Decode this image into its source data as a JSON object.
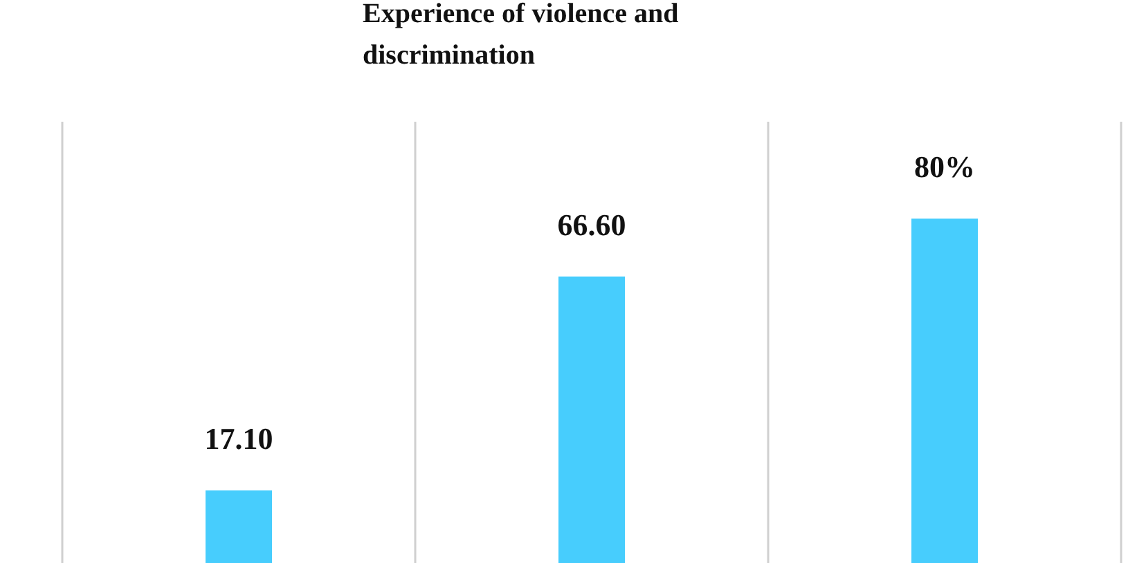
{
  "chart_data": {
    "type": "bar",
    "title": "Experience of violence and discrimination",
    "categories": [
      null,
      null,
      null
    ],
    "values": [
      17.1,
      66.6,
      80
    ],
    "value_labels": [
      "17.10",
      "66.60",
      "80%"
    ],
    "color": "#47cdfd",
    "grid": "x"
  }
}
